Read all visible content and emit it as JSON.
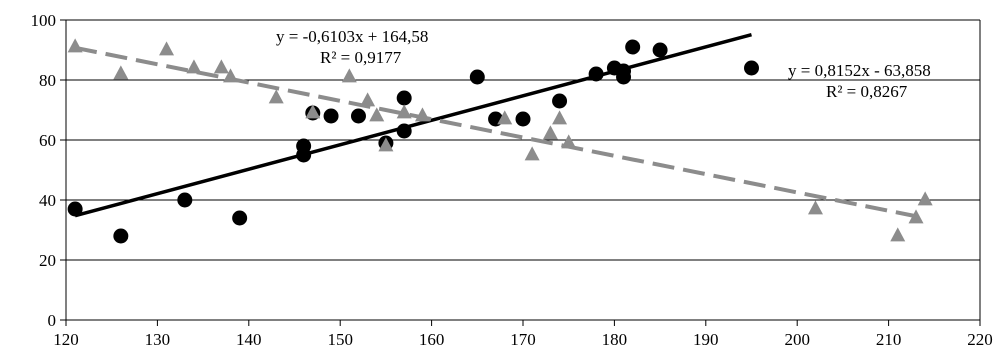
{
  "chart_data": {
    "type": "scatter",
    "title": "",
    "xlabel": "",
    "ylabel": "",
    "xlim": [
      120,
      220
    ],
    "ylim": [
      0,
      100
    ],
    "xticks": [
      120,
      130,
      140,
      150,
      160,
      170,
      180,
      190,
      200,
      210,
      220
    ],
    "yticks": [
      0,
      20,
      40,
      60,
      80,
      100
    ],
    "grid": "horizontal",
    "series": [
      {
        "marker": "circle",
        "color": "#000000",
        "points": [
          [
            121,
            37
          ],
          [
            126,
            28
          ],
          [
            133,
            40
          ],
          [
            139,
            34
          ],
          [
            146,
            55
          ],
          [
            146,
            58
          ],
          [
            147,
            69
          ],
          [
            149,
            68
          ],
          [
            152,
            68
          ],
          [
            155,
            59
          ],
          [
            157,
            63
          ],
          [
            157,
            74
          ],
          [
            165,
            81
          ],
          [
            167,
            67
          ],
          [
            170,
            67
          ],
          [
            174,
            73
          ],
          [
            178,
            82
          ],
          [
            180,
            84
          ],
          [
            181,
            81
          ],
          [
            181,
            83
          ],
          [
            182,
            91
          ],
          [
            185,
            90
          ],
          [
            195,
            84
          ]
        ],
        "trendline": {
          "style": "solid",
          "color": "#000000",
          "x_range": [
            121,
            195
          ],
          "slope": 0.8152,
          "intercept": -63.858
        },
        "equation": "y = 0,8152x - 63,858",
        "r2": "R² = 0,8267"
      },
      {
        "marker": "triangle",
        "color": "#8c8c8c",
        "points": [
          [
            121,
            91
          ],
          [
            126,
            82
          ],
          [
            131,
            90
          ],
          [
            134,
            84
          ],
          [
            137,
            84
          ],
          [
            138,
            81
          ],
          [
            143,
            74
          ],
          [
            147,
            69
          ],
          [
            151,
            81
          ],
          [
            153,
            73
          ],
          [
            154,
            68
          ],
          [
            155,
            58
          ],
          [
            157,
            69
          ],
          [
            159,
            68
          ],
          [
            168,
            67
          ],
          [
            171,
            55
          ],
          [
            173,
            62
          ],
          [
            174,
            67
          ],
          [
            175,
            59
          ],
          [
            202,
            37
          ],
          [
            211,
            28
          ],
          [
            213,
            34
          ],
          [
            214,
            40
          ]
        ],
        "trendline": {
          "style": "dashed",
          "color": "#8c8c8c",
          "x_range": [
            121,
            214
          ],
          "slope": -0.6103,
          "intercept": 164.58
        },
        "equation": "y = -0,6103x + 164,58",
        "r2": "R² = 0,9177"
      }
    ]
  }
}
